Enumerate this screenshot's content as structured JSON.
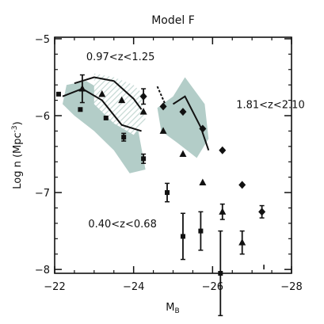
{
  "chart_data": {
    "type": "scatter",
    "title": "Model F",
    "xlabel": "M",
    "xlabel_sub": "B",
    "ylabel": "Log n (Mpc",
    "ylabel_sup": "-3",
    "ylabel_close": ")",
    "xlim": [
      -22,
      -28
    ],
    "ylim": [
      -8.05,
      -4.98
    ],
    "xticks": [
      -22,
      -24,
      -26,
      -28
    ],
    "xtick_labels": [
      "−22",
      "−24",
      "−26",
      "−28"
    ],
    "yticks": [
      -5,
      -6,
      -7,
      -8
    ],
    "ytick_labels": [
      "−5",
      "−6",
      "−7",
      "−8"
    ],
    "grid": false,
    "annotations": [
      {
        "text": "0.97<z<1.25",
        "x": -22.8,
        "y": -5.28
      },
      {
        "text": "1.81<z<2.10",
        "x": -26.6,
        "y": -5.9
      },
      {
        "text": "0.40<z<0.68",
        "x": -22.85,
        "y": -7.45
      }
    ],
    "colors": {
      "band": "#b3cdc8",
      "hatch": "#c4d8d3",
      "marker": "#111111"
    },
    "bands": [
      {
        "name": "0.40<z<0.68",
        "style": "solid",
        "polygon": [
          [
            -22.3,
            -5.6
          ],
          [
            -22.8,
            -5.55
          ],
          [
            -23.3,
            -5.7
          ],
          [
            -23.6,
            -5.95
          ],
          [
            -24.1,
            -6.15
          ],
          [
            -24.3,
            -6.7
          ],
          [
            -23.9,
            -6.75
          ],
          [
            -23.5,
            -6.45
          ],
          [
            -23.0,
            -6.2
          ],
          [
            -22.5,
            -6.0
          ],
          [
            -22.2,
            -5.85
          ]
        ]
      },
      {
        "name": "0.97<z<1.25",
        "style": "hatched",
        "polygon": [
          [
            -23.0,
            -5.45
          ],
          [
            -23.5,
            -5.5
          ],
          [
            -24.0,
            -5.6
          ],
          [
            -24.2,
            -5.7
          ],
          [
            -24.3,
            -6.05
          ],
          [
            -24.0,
            -6.25
          ],
          [
            -23.5,
            -6.1
          ],
          [
            -23.0,
            -5.85
          ]
        ]
      },
      {
        "name": "1.81<z<2.10",
        "style": "solid",
        "polygon": [
          [
            -24.6,
            -5.9
          ],
          [
            -25.0,
            -5.75
          ],
          [
            -25.3,
            -5.5
          ],
          [
            -25.8,
            -5.85
          ],
          [
            -25.9,
            -6.3
          ],
          [
            -25.6,
            -6.55
          ],
          [
            -25.1,
            -6.35
          ],
          [
            -24.7,
            -6.2
          ]
        ]
      }
    ],
    "lines": [
      {
        "name": "0.40<z<0.68",
        "style": "solid",
        "x": [
          -22.2,
          -22.7,
          -23.2,
          -23.7,
          -24.2
        ],
        "y": [
          -5.75,
          -5.65,
          -5.8,
          -6.12,
          -6.2
        ]
      },
      {
        "name": "0.97<z<1.25",
        "style": "solid",
        "x": [
          -22.5,
          -23.0,
          -23.5,
          -24.0,
          -24.2
        ],
        "y": [
          -5.58,
          -5.5,
          -5.55,
          -5.78,
          -5.92
        ]
      },
      {
        "name": "1.81<z<2.10",
        "style": "solid",
        "x": [
          -25.0,
          -25.3,
          -25.7,
          -25.9
        ],
        "y": [
          -5.85,
          -5.75,
          -6.15,
          -6.45
        ]
      },
      {
        "name": "connector",
        "style": "dashed",
        "x": [
          -24.6,
          -24.8
        ],
        "y": [
          -5.62,
          -5.85
        ]
      }
    ],
    "series": [
      {
        "marker": "square",
        "points": [
          {
            "x": -22.1,
            "y": -5.72
          },
          {
            "x": -22.65,
            "y": -5.92
          },
          {
            "x": -23.3,
            "y": -6.03
          },
          {
            "x": -23.75,
            "y": -6.28,
            "err": 0.05
          },
          {
            "x": -24.25,
            "y": -6.56,
            "err": 0.06
          },
          {
            "x": -24.85,
            "y": -7.0,
            "err": 0.12
          },
          {
            "x": -25.25,
            "y": -7.57,
            "err": 0.3
          },
          {
            "x": -25.7,
            "y": -7.5,
            "err": 0.25
          },
          {
            "x": -26.2,
            "y": -8.05,
            "err": 0.55
          }
        ]
      },
      {
        "marker": "triangle",
        "points": [
          {
            "x": -22.7,
            "y": -5.65,
            "err": 0.18
          },
          {
            "x": -23.2,
            "y": -5.72
          },
          {
            "x": -23.7,
            "y": -5.8
          },
          {
            "x": -24.25,
            "y": -5.95
          },
          {
            "x": -24.75,
            "y": -6.2
          },
          {
            "x": -25.25,
            "y": -6.5
          },
          {
            "x": -25.75,
            "y": -6.87
          },
          {
            "x": -26.25,
            "y": -7.25,
            "err": 0.1
          },
          {
            "x": -26.75,
            "y": -7.65,
            "err": 0.15
          }
        ]
      },
      {
        "marker": "diamond",
        "points": [
          {
            "x": -24.25,
            "y": -5.75,
            "err": 0.1
          },
          {
            "x": -24.75,
            "y": -5.88
          },
          {
            "x": -25.25,
            "y": -5.95
          },
          {
            "x": -25.75,
            "y": -6.17
          },
          {
            "x": -26.25,
            "y": -6.45
          },
          {
            "x": -26.75,
            "y": -6.9
          },
          {
            "x": -27.25,
            "y": -7.25,
            "err": 0.08
          }
        ]
      }
    ],
    "upper_limit": {
      "x": -27.3,
      "y": -8.0
    }
  }
}
